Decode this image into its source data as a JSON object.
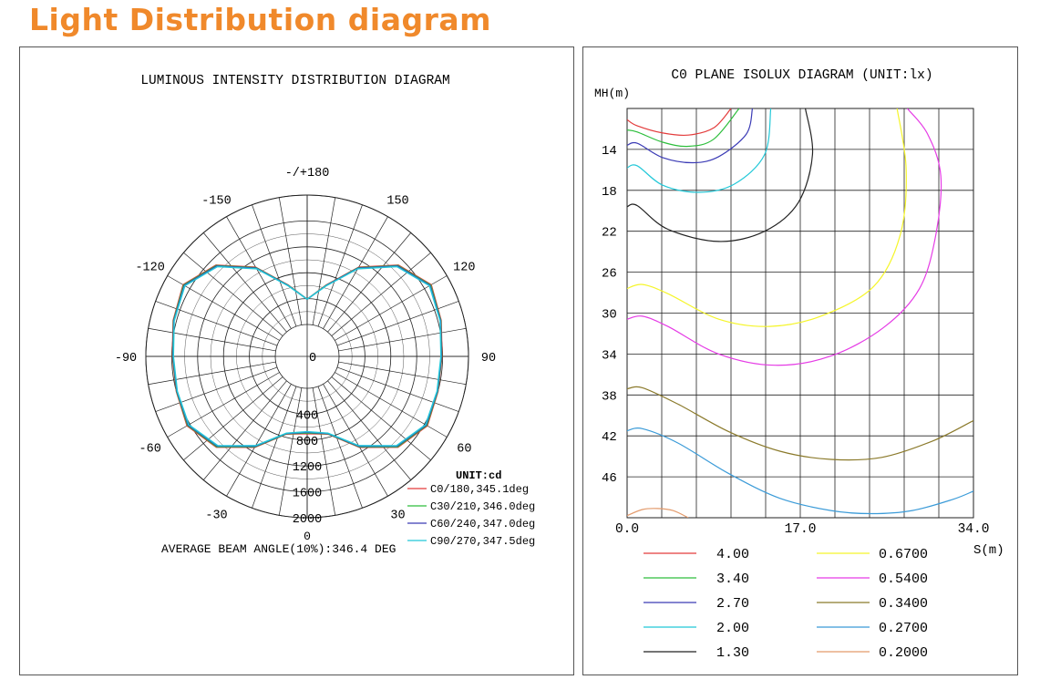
{
  "page": {
    "title": "Light Distribution diagram",
    "title_color": "#F0892B"
  },
  "chart_data": [
    {
      "type": "polar",
      "title": "LUMINOUS INTENSITY DISTRIBUTION DIAGRAM",
      "unit_label": "UNIT:cd",
      "angle_labels": [
        {
          "angle": 180,
          "text": "-/+180"
        },
        {
          "angle": 150,
          "text": "150"
        },
        {
          "angle": -150,
          "text": "-150"
        },
        {
          "angle": 120,
          "text": "120"
        },
        {
          "angle": -120,
          "text": "-120"
        },
        {
          "angle": 90,
          "text": "90"
        },
        {
          "angle": -90,
          "text": "-90"
        },
        {
          "angle": 60,
          "text": "60"
        },
        {
          "angle": -60,
          "text": "-60"
        },
        {
          "angle": 30,
          "text": "30"
        },
        {
          "angle": -30,
          "text": "-30"
        }
      ],
      "radial_ticks": [
        {
          "value": 0,
          "text": "0"
        },
        {
          "value": 400,
          "text": "400"
        },
        {
          "value": 800,
          "text": "800"
        },
        {
          "value": 1200,
          "text": "1200"
        },
        {
          "value": 1600,
          "text": "1600"
        },
        {
          "value": 2000,
          "text": "2000"
        }
      ],
      "bottom_zero_label": "0",
      "rmax": 2000,
      "series": [
        {
          "name": "C0/180,345.1deg",
          "color": "#E33B3B",
          "values": [
            [
              0,
              700
            ],
            [
              15,
              750
            ],
            [
              30,
              1130
            ],
            [
              45,
              1490
            ],
            [
              60,
              1650
            ],
            [
              75,
              1600
            ],
            [
              90,
              1590
            ],
            [
              105,
              1650
            ],
            [
              120,
              1720
            ],
            [
              135,
              1500
            ],
            [
              150,
              1100
            ],
            [
              165,
              650
            ],
            [
              180,
              390
            ]
          ]
        },
        {
          "name": "C30/210,346.0deg",
          "color": "#2DBE3C",
          "values": [
            [
              0,
              690
            ],
            [
              15,
              745
            ],
            [
              30,
              1120
            ],
            [
              45,
              1480
            ],
            [
              60,
              1640
            ],
            [
              75,
              1595
            ],
            [
              90,
              1585
            ],
            [
              105,
              1645
            ],
            [
              120,
              1710
            ],
            [
              135,
              1490
            ],
            [
              150,
              1090
            ],
            [
              165,
              645
            ],
            [
              180,
              390
            ]
          ]
        },
        {
          "name": "C60/240,347.0deg",
          "color": "#3B3BB5",
          "values": [
            [
              0,
              680
            ],
            [
              15,
              740
            ],
            [
              30,
              1110
            ],
            [
              45,
              1470
            ],
            [
              60,
              1630
            ],
            [
              75,
              1590
            ],
            [
              90,
              1580
            ],
            [
              105,
              1640
            ],
            [
              120,
              1700
            ],
            [
              135,
              1480
            ],
            [
              150,
              1080
            ],
            [
              165,
              640
            ],
            [
              180,
              390
            ]
          ]
        },
        {
          "name": "C90/270,347.5deg",
          "color": "#22C8D8",
          "values": [
            [
              0,
              670
            ],
            [
              15,
              735
            ],
            [
              30,
              1100
            ],
            [
              45,
              1460
            ],
            [
              60,
              1620
            ],
            [
              75,
              1585
            ],
            [
              90,
              1575
            ],
            [
              105,
              1635
            ],
            [
              120,
              1690
            ],
            [
              135,
              1470
            ],
            [
              150,
              1070
            ],
            [
              165,
              635
            ],
            [
              180,
              390
            ]
          ]
        }
      ],
      "avg_beam_text": "AVERAGE BEAM ANGLE(10%):346.4 DEG"
    },
    {
      "type": "line",
      "title": "C0 PLANE ISOLUX DIAGRAM (UNIT:lx)",
      "ylabel": "MH(m)",
      "xlabel": "S(m)",
      "xlim": [
        0,
        34
      ],
      "ylim": [
        10,
        50
      ],
      "x_ticks": [
        {
          "value": 0,
          "text": "0.0"
        },
        {
          "value": 17,
          "text": "17.0"
        },
        {
          "value": 34,
          "text": "34.0"
        }
      ],
      "y_ticks": [
        14,
        18,
        22,
        26,
        30,
        34,
        38,
        42,
        46
      ],
      "series": [
        {
          "name": "4.00",
          "color": "#E33B3B",
          "points": [
            [
              0,
              11.1
            ],
            [
              1,
              11.7
            ],
            [
              3.5,
              12.4
            ],
            [
              6,
              12.6
            ],
            [
              8.5,
              11.9
            ],
            [
              10.2,
              10
            ]
          ]
        },
        {
          "name": "3.40",
          "color": "#2DBE3C",
          "points": [
            [
              0,
              12.1
            ],
            [
              1,
              12.3
            ],
            [
              3.5,
              13.3
            ],
            [
              6,
              13.7
            ],
            [
              8.5,
              13
            ],
            [
              11,
              10
            ]
          ]
        },
        {
          "name": "2.70",
          "color": "#3B3BB5",
          "points": [
            [
              0,
              13.6
            ],
            [
              1,
              13.4
            ],
            [
              3.5,
              14.8
            ],
            [
              6.5,
              15.3
            ],
            [
              9,
              14.7
            ],
            [
              11.7,
              12.5
            ],
            [
              12.3,
              10
            ]
          ]
        },
        {
          "name": "2.00",
          "color": "#22C8D8",
          "points": [
            [
              0,
              15.8
            ],
            [
              1,
              15.6
            ],
            [
              3.5,
              17.5
            ],
            [
              7,
              18.2
            ],
            [
              10.5,
              17.4
            ],
            [
              13.5,
              14.5
            ],
            [
              14.1,
              10
            ]
          ]
        },
        {
          "name": "1.30",
          "color": "#222222",
          "points": [
            [
              0,
              19.6
            ],
            [
              1,
              19.5
            ],
            [
              4,
              21.8
            ],
            [
              9,
              23
            ],
            [
              13.5,
              22
            ],
            [
              16.8,
              19.2
            ],
            [
              18.2,
              14.5
            ],
            [
              17.5,
              10
            ]
          ]
        },
        {
          "name": "0.6700",
          "color": "#F5F52A",
          "points": [
            [
              0,
              27.6
            ],
            [
              1.5,
              27.2
            ],
            [
              4,
              28.1
            ],
            [
              9,
              30.6
            ],
            [
              14,
              31.3
            ],
            [
              19,
              30.3
            ],
            [
              24.2,
              27.4
            ],
            [
              26.8,
              22.4
            ],
            [
              27.4,
              16
            ],
            [
              26.5,
              10
            ]
          ]
        },
        {
          "name": "0.5400",
          "color": "#E53BE5",
          "points": [
            [
              0,
              30.6
            ],
            [
              1.5,
              30.3
            ],
            [
              4,
              31.3
            ],
            [
              9,
              34
            ],
            [
              14.5,
              35.1
            ],
            [
              20,
              34.2
            ],
            [
              25.2,
              31.4
            ],
            [
              28.7,
              27.6
            ],
            [
              30.3,
              22.4
            ],
            [
              30.8,
              16.6
            ],
            [
              29.5,
              12.5
            ],
            [
              27.5,
              10
            ]
          ]
        },
        {
          "name": "0.3400",
          "color": "#8B7A2B",
          "points": [
            [
              0,
              37.4
            ],
            [
              1.5,
              37.3
            ],
            [
              5,
              38.9
            ],
            [
              10,
              41.6
            ],
            [
              15,
              43.5
            ],
            [
              20,
              44.3
            ],
            [
              25,
              44.1
            ],
            [
              30,
              42.5
            ],
            [
              34,
              40.5
            ]
          ]
        },
        {
          "name": "0.2700",
          "color": "#3B9BD8",
          "points": [
            [
              0,
              41.5
            ],
            [
              1.5,
              41.3
            ],
            [
              5,
              42.7
            ],
            [
              10,
              45.7
            ],
            [
              15,
              48.1
            ],
            [
              20,
              49.3
            ],
            [
              24,
              49.6
            ],
            [
              28,
              49.3
            ],
            [
              32,
              48.2
            ],
            [
              34,
              47.4
            ]
          ]
        },
        {
          "name": "0.2000",
          "color": "#E39A6B",
          "points": [
            [
              0,
              49.8
            ],
            [
              1.5,
              49.2
            ],
            [
              3,
              49.1
            ],
            [
              4.5,
              49.3
            ],
            [
              6,
              50
            ]
          ]
        }
      ]
    }
  ]
}
